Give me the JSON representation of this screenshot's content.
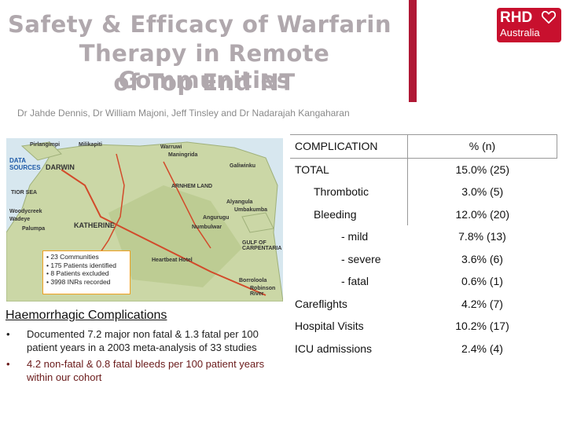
{
  "title": {
    "line1": "Safety & Efficacy of Warfarin",
    "line2": "Therapy in Remote Communities",
    "line3": "of Top End NT"
  },
  "logo": {
    "brand": "RHD",
    "sub": "Australia"
  },
  "authors": "Dr Jahde Dennis, Dr William Majoni, Jeff Tinsley  and Dr Nadarajah Kangaharan",
  "map": {
    "data_sources": "DATA SOURCES",
    "places": [
      "Pirlangimpi",
      "Milikapiti",
      "Warruwi",
      "Maningrida",
      "Galiwinku",
      "DARWIN",
      "ARNHEM LAND",
      "TIOR SEA",
      "KATHERINE",
      "GULF OF CARPENTARIA",
      "Wadeye",
      "Palumpa",
      "Woodycreek",
      "Angurugu",
      "Numbulwar",
      "Alyangula",
      "Umbakumba",
      "Borroloola",
      "Robinson River",
      "Heartbeat Hotel"
    ],
    "legend": [
      "23 Communities",
      "175 Patients identified",
      "8 Patients excluded",
      "3998 INRs recorded"
    ]
  },
  "haemorrhagic": {
    "heading": "Haemorrhagic Complications",
    "bullets": [
      "Documented 7.2 major non fatal & 1.3 fatal per 100 patient years in a 2003 meta-analysis of 33 studies",
      "4.2 non-fatal & 0.8 fatal bleeds per 100 patient years within our cohort"
    ]
  },
  "table": {
    "header": [
      "COMPLICATION",
      "% (n)"
    ],
    "rows": [
      [
        "TOTAL",
        "15.0% (25)"
      ],
      [
        "Thrombotic",
        "3.0% (5)"
      ],
      [
        "Bleeding",
        "12.0% (20)"
      ],
      [
        "- mild",
        "7.8% (13)"
      ],
      [
        "- severe",
        "3.6% (6)"
      ],
      [
        "- fatal",
        "0.6% (1)"
      ],
      [
        "Careflights",
        "4.2% (7)"
      ],
      [
        "Hospital Visits",
        "10.2% (17)"
      ],
      [
        "ICU admissions",
        "2.4% (4)"
      ]
    ]
  },
  "colors": {
    "title": "#b0a8ad",
    "brand": "#c8102e",
    "legend_border": "#f0a020"
  }
}
